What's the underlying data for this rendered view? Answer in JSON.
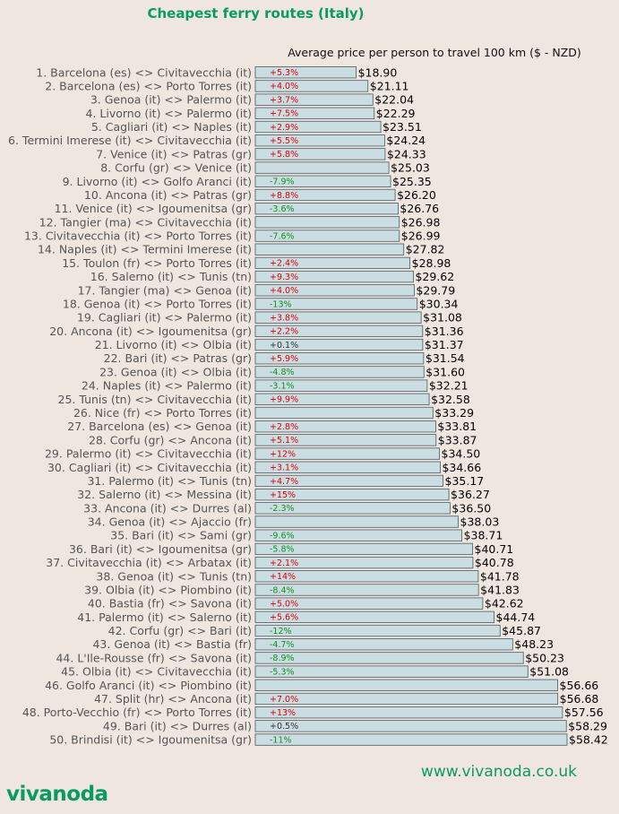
{
  "chart_data": {
    "type": "bar",
    "orientation": "horizontal",
    "title": "Cheapest ferry routes (Italy)",
    "subtitle": "Average price per person to travel 100 km ($ - NZD)",
    "value_prefix": "$",
    "xlim": [
      0,
      58.42
    ],
    "grid": false,
    "colors": {
      "bar_fill": "#cadde3",
      "bar_stroke": "#4a5a60",
      "label_text": "#555555",
      "value_text": "#000000",
      "increase": "#e00000",
      "decrease": "#10901a",
      "neutral": "#333333",
      "brand": "#0a9b5e"
    },
    "categories": [
      "1. Barcelona (es) <> Civitavecchia (it)",
      "2. Barcelona (es) <> Porto Torres (it)",
      "3. Genoa (it) <> Palermo (it)",
      "4. Livorno (it) <> Palermo (it)",
      "5. Cagliari (it) <> Naples (it)",
      "6. Termini Imerese (it) <> Civitavecchia (it)",
      "7. Venice (it) <> Patras (gr)",
      "8. Corfu (gr) <> Venice (it)",
      "9. Livorno (it) <> Golfo Aranci (it)",
      "10. Ancona (it) <> Patras (gr)",
      "11. Venice (it) <> Igoumenitsa (gr)",
      "12. Tangier (ma) <> Civitavecchia (it)",
      "13. Civitavecchia (it) <> Porto Torres (it)",
      "14. Naples (it) <> Termini Imerese (it)",
      "15. Toulon (fr) <> Porto Torres (it)",
      "16. Salerno (it) <> Tunis (tn)",
      "17. Tangier (ma) <> Genoa (it)",
      "18. Genoa (it) <> Porto Torres (it)",
      "19. Cagliari (it) <> Palermo (it)",
      "20. Ancona (it) <> Igoumenitsa (gr)",
      "21. Livorno (it) <> Olbia (it)",
      "22. Bari (it) <> Patras (gr)",
      "23. Genoa (it) <> Olbia (it)",
      "24. Naples (it) <> Palermo (it)",
      "25. Tunis (tn) <> Civitavecchia (it)",
      "26. Nice (fr) <> Porto Torres (it)",
      "27. Barcelona (es) <> Genoa (it)",
      "28. Corfu (gr) <> Ancona (it)",
      "29. Palermo (it) <> Civitavecchia (it)",
      "30. Cagliari (it) <> Civitavecchia (it)",
      "31. Palermo (it) <> Tunis (tn)",
      "32. Salerno (it) <> Messina (it)",
      "33. Ancona (it) <> Durres (al)",
      "34. Genoa (it) <> Ajaccio (fr)",
      "35. Bari (it) <> Sami (gr)",
      "36. Bari (it) <> Igoumenitsa (gr)",
      "37. Civitavecchia (it) <> Arbatax (it)",
      "38. Genoa (it) <> Tunis (tn)",
      "39. Olbia (it) <> Piombino (it)",
      "40. Bastia (fr) <> Savona (it)",
      "41. Palermo (it) <> Salerno (it)",
      "42. Corfu (gr) <> Bari (it)",
      "43. Genoa (it) <> Bastia (fr)",
      "44. L'Ile-Rousse (fr) <> Savona (it)",
      "45. Olbia (it) <> Civitavecchia (it)",
      "46. Golfo Aranci (it) <> Piombino (it)",
      "47. Split (hr) <> Ancona (it)",
      "48. Porto-Vecchio (fr) <> Porto Torres (it)",
      "49. Bari (it) <> Durres (al)",
      "50. Brindisi (it) <> Igoumenitsa (gr)"
    ],
    "values": [
      18.9,
      21.11,
      22.04,
      22.29,
      23.51,
      24.24,
      24.33,
      25.03,
      25.35,
      26.2,
      26.76,
      26.98,
      26.99,
      27.82,
      28.98,
      29.62,
      29.79,
      30.34,
      31.08,
      31.36,
      31.37,
      31.54,
      31.6,
      32.21,
      32.58,
      33.29,
      33.81,
      33.87,
      34.5,
      34.66,
      35.17,
      36.27,
      36.5,
      38.03,
      38.71,
      40.71,
      40.78,
      41.78,
      41.83,
      42.62,
      44.74,
      45.87,
      48.23,
      50.23,
      51.08,
      56.66,
      56.68,
      57.56,
      58.29,
      58.42
    ],
    "value_labels": [
      "$18.90",
      "$21.11",
      "$22.04",
      "$22.29",
      "$23.51",
      "$24.24",
      "$24.33",
      "$25.03",
      "$25.35",
      "$26.20",
      "$26.76",
      "$26.98",
      "$26.99",
      "$27.82",
      "$28.98",
      "$29.62",
      "$29.79",
      "$30.34",
      "$31.08",
      "$31.36",
      "$31.37",
      "$31.54",
      "$31.60",
      "$32.21",
      "$32.58",
      "$33.29",
      "$33.81",
      "$33.87",
      "$34.50",
      "$34.66",
      "$35.17",
      "$36.27",
      "$36.50",
      "$38.03",
      "$38.71",
      "$40.71",
      "$40.78",
      "$41.78",
      "$41.83",
      "$42.62",
      "$44.74",
      "$45.87",
      "$48.23",
      "$50.23",
      "$51.08",
      "$56.66",
      "$56.68",
      "$57.56",
      "$58.29",
      "$58.42"
    ],
    "changes": [
      "+5.3%",
      "+4.0%",
      "+3.7%",
      "+7.5%",
      "+2.9%",
      "+5.5%",
      "+5.8%",
      "",
      "-7.9%",
      "+8.8%",
      "-3.6%",
      "",
      "-7.6%",
      "",
      "+2.4%",
      "+9.3%",
      "+4.0%",
      "-13%",
      "+3.8%",
      "+2.2%",
      "+0.1%",
      "+5.9%",
      "-4.8%",
      "-3.1%",
      "+9.9%",
      "",
      "+2.8%",
      "+5.1%",
      "+12%",
      "+3.1%",
      "+4.7%",
      "+15%",
      "-2.3%",
      "",
      "-9.6%",
      "-5.8%",
      "+2.1%",
      "+14%",
      "-8.4%",
      "+5.0%",
      "+5.6%",
      "-12%",
      "-4.7%",
      "-8.9%",
      "-5.3%",
      "",
      "+7.0%",
      "+13%",
      "+0.5%",
      "-11%"
    ]
  },
  "footer": {
    "logo_text": "vivanoda",
    "website": "www.vivanoda.co.uk"
  }
}
